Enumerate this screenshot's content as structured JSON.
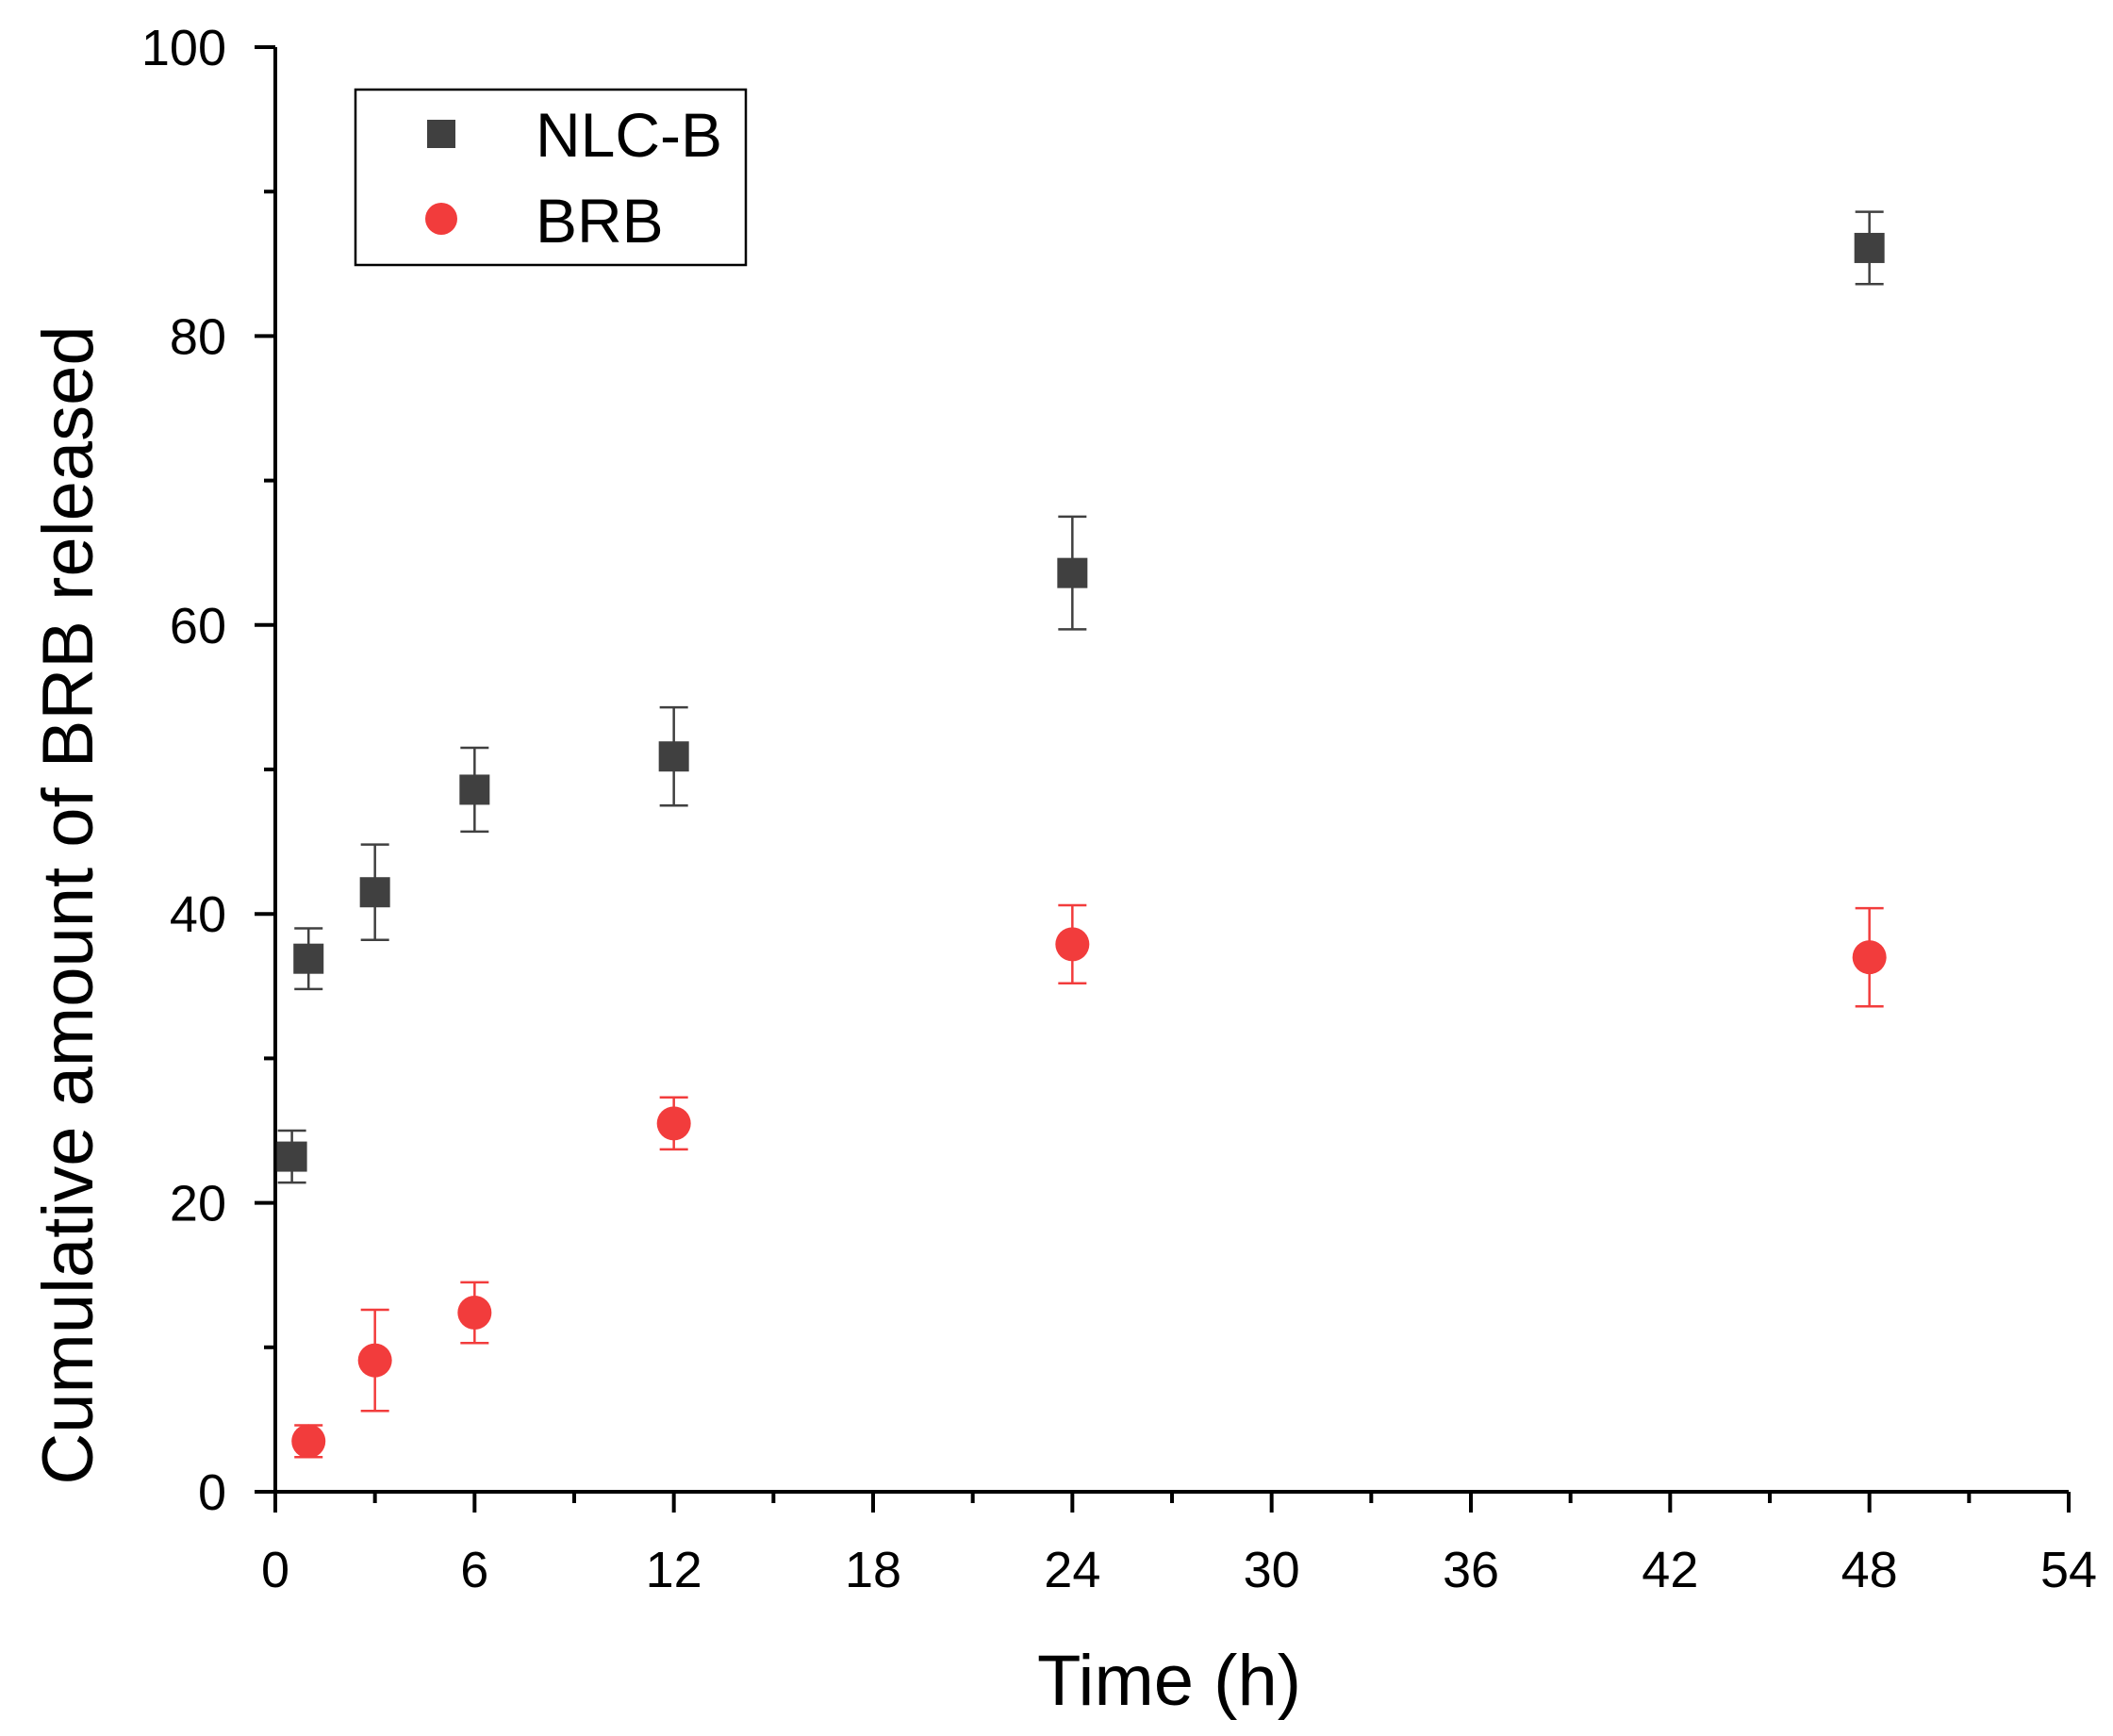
{
  "chart_data": {
    "type": "scatter",
    "title": "",
    "xlabel": "Time (h)",
    "ylabel": "Cumulative amount of BRB released",
    "xlim": [
      0,
      54
    ],
    "ylim": [
      0,
      100
    ],
    "xticks": [
      0,
      6,
      12,
      18,
      24,
      30,
      36,
      42,
      48,
      54
    ],
    "yticks": [
      0,
      20,
      40,
      60,
      80,
      100
    ],
    "x_minor_step": 3,
    "y_minor_step": 10,
    "grid": false,
    "legend_position": "top-left",
    "series": [
      {
        "name": "NLC-B",
        "marker": "square",
        "color": "#404040",
        "x": [
          0.5,
          1,
          3,
          6,
          12,
          24,
          48
        ],
        "y": [
          23.2,
          36.9,
          41.5,
          48.6,
          50.9,
          63.6,
          86.1
        ],
        "err": [
          1.8,
          2.1,
          3.3,
          2.9,
          3.4,
          3.9,
          2.5
        ]
      },
      {
        "name": "BRB",
        "marker": "circle",
        "color": "#f23c3c",
        "x": [
          1,
          3,
          6,
          12,
          24,
          48
        ],
        "y": [
          3.5,
          9.1,
          12.4,
          25.5,
          37.9,
          37.0
        ],
        "err": [
          1.1,
          3.5,
          2.1,
          1.8,
          2.7,
          3.4
        ]
      }
    ]
  }
}
